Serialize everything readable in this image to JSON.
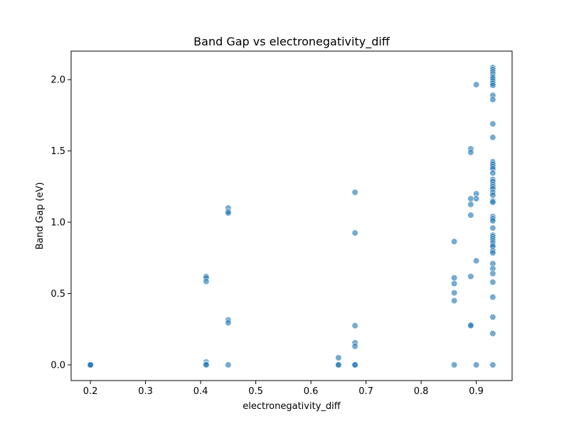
{
  "chart_data": {
    "type": "scatter",
    "title": "Band Gap vs electronegativity_diff",
    "xlabel": "electronegativity_diff",
    "ylabel": "Band Gap (eV)",
    "xlim": [
      0.165,
      0.965
    ],
    "ylim": [
      -0.11,
      2.2
    ],
    "xticks": [
      0.2,
      0.3,
      0.4,
      0.5,
      0.6,
      0.7,
      0.8,
      0.9
    ],
    "xtick_labels": [
      "0.2",
      "0.3",
      "0.4",
      "0.5",
      "0.6",
      "0.7",
      "0.8",
      "0.9"
    ],
    "yticks": [
      0.0,
      0.5,
      1.0,
      1.5,
      2.0
    ],
    "ytick_labels": [
      "0.0",
      "0.5",
      "1.0",
      "1.5",
      "2.0"
    ],
    "grid": false,
    "point_color": "#1f77b4",
    "point_alpha": 0.62,
    "points": [
      [
        0.2,
        0.0
      ],
      [
        0.2,
        0.0
      ],
      [
        0.2,
        0.0
      ],
      [
        0.41,
        0.62
      ],
      [
        0.41,
        0.61
      ],
      [
        0.41,
        0.585
      ],
      [
        0.41,
        0.02
      ],
      [
        0.41,
        0.005
      ],
      [
        0.41,
        0.0
      ],
      [
        0.45,
        1.1
      ],
      [
        0.45,
        1.075
      ],
      [
        0.45,
        1.065
      ],
      [
        0.45,
        0.315
      ],
      [
        0.45,
        0.295
      ],
      [
        0.45,
        0.0
      ],
      [
        0.65,
        0.05
      ],
      [
        0.65,
        0.0
      ],
      [
        0.65,
        0.0
      ],
      [
        0.68,
        1.21
      ],
      [
        0.68,
        0.925
      ],
      [
        0.68,
        0.275
      ],
      [
        0.68,
        0.155
      ],
      [
        0.68,
        0.13
      ],
      [
        0.68,
        0.0
      ],
      [
        0.68,
        0.0
      ],
      [
        0.86,
        0.865
      ],
      [
        0.86,
        0.61
      ],
      [
        0.86,
        0.57
      ],
      [
        0.86,
        0.505
      ],
      [
        0.86,
        0.45
      ],
      [
        0.86,
        0.0
      ],
      [
        0.89,
        1.515
      ],
      [
        0.89,
        1.49
      ],
      [
        0.89,
        1.165
      ],
      [
        0.89,
        1.125
      ],
      [
        0.89,
        1.05
      ],
      [
        0.89,
        0.62
      ],
      [
        0.89,
        0.28
      ],
      [
        0.89,
        0.275
      ],
      [
        0.9,
        1.965
      ],
      [
        0.9,
        1.2
      ],
      [
        0.9,
        1.165
      ],
      [
        0.9,
        0.73
      ],
      [
        0.9,
        0.0
      ],
      [
        0.93,
        2.085
      ],
      [
        0.93,
        2.07
      ],
      [
        0.93,
        2.055
      ],
      [
        0.93,
        2.04
      ],
      [
        0.93,
        2.025
      ],
      [
        0.93,
        2.015
      ],
      [
        0.93,
        2.005
      ],
      [
        0.93,
        1.99
      ],
      [
        0.93,
        1.975
      ],
      [
        0.93,
        1.96
      ],
      [
        0.93,
        1.89
      ],
      [
        0.93,
        1.86
      ],
      [
        0.93,
        1.69
      ],
      [
        0.93,
        1.595
      ],
      [
        0.93,
        1.425
      ],
      [
        0.93,
        1.415
      ],
      [
        0.93,
        1.405
      ],
      [
        0.93,
        1.39
      ],
      [
        0.93,
        1.375
      ],
      [
        0.93,
        1.345
      ],
      [
        0.93,
        1.3
      ],
      [
        0.93,
        1.285
      ],
      [
        0.93,
        1.265
      ],
      [
        0.93,
        1.25
      ],
      [
        0.93,
        1.235
      ],
      [
        0.93,
        1.21
      ],
      [
        0.93,
        1.19
      ],
      [
        0.93,
        1.15
      ],
      [
        0.93,
        1.14
      ],
      [
        0.93,
        1.04
      ],
      [
        0.93,
        1.025
      ],
      [
        0.93,
        1.01
      ],
      [
        0.93,
        0.96
      ],
      [
        0.93,
        0.91
      ],
      [
        0.93,
        0.9
      ],
      [
        0.93,
        0.885
      ],
      [
        0.93,
        0.87
      ],
      [
        0.93,
        0.855
      ],
      [
        0.93,
        0.84
      ],
      [
        0.93,
        0.83
      ],
      [
        0.93,
        0.8
      ],
      [
        0.93,
        0.785
      ],
      [
        0.93,
        0.71
      ],
      [
        0.93,
        0.675
      ],
      [
        0.93,
        0.64
      ],
      [
        0.93,
        0.58
      ],
      [
        0.93,
        0.475
      ],
      [
        0.93,
        0.335
      ],
      [
        0.93,
        0.22
      ],
      [
        0.93,
        0.0
      ]
    ]
  }
}
